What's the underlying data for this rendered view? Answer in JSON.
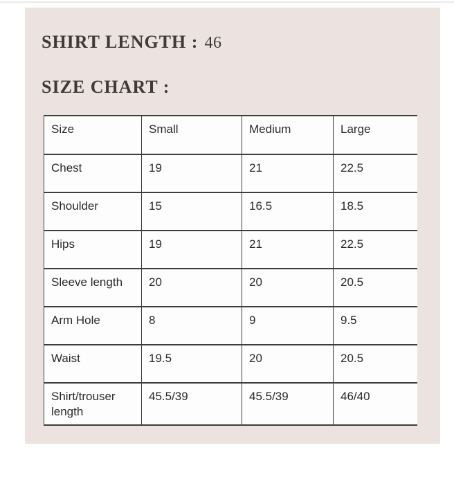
{
  "colors": {
    "page_background": "#ffffff",
    "panel_background": "#ece3e0",
    "heading_text": "#3f3a39",
    "table_border": "#3d3d3d",
    "table_text": "#2a2a2a",
    "cell_background": "#fdfdfd"
  },
  "headings": {
    "shirt_length_label": "SHIRT LENGTH :",
    "shirt_length_value": "46",
    "size_chart_label": "SIZE CHART :"
  },
  "table": {
    "columns": [
      "Size",
      "Small",
      "Medium",
      "Large"
    ],
    "rows": [
      {
        "label": "Chest",
        "values": [
          "19",
          "21",
          "22.5"
        ]
      },
      {
        "label": "Shoulder",
        "values": [
          "15",
          "16.5",
          "18.5"
        ]
      },
      {
        "label": "Hips",
        "values": [
          "19",
          "21",
          "22.5"
        ]
      },
      {
        "label": "Sleeve length",
        "values": [
          "20",
          "20",
          "20.5"
        ]
      },
      {
        "label": "Arm Hole",
        "values": [
          "8",
          "9",
          "9.5"
        ]
      },
      {
        "label": "Waist",
        "values": [
          "19.5",
          "20",
          "20.5"
        ]
      },
      {
        "label": "Shirt/trouser length",
        "values": [
          "45.5/39",
          "45.5/39",
          "46/40"
        ]
      }
    ]
  }
}
